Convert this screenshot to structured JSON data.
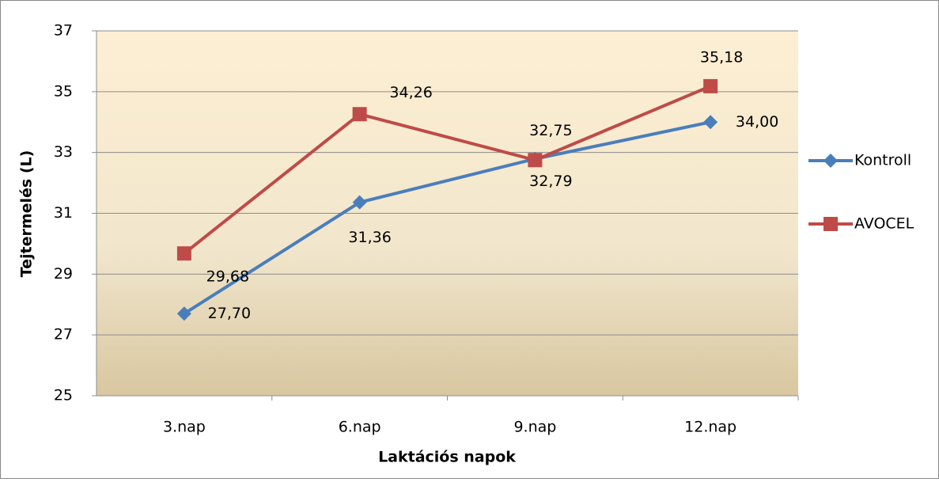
{
  "chart_data": {
    "type": "line",
    "categories": [
      "3.nap",
      "6.nap",
      "9.nap",
      "12.nap"
    ],
    "series": [
      {
        "name": "Kontroll",
        "color": "#4a7ebb",
        "marker": "diamond",
        "values": [
          27.7,
          31.36,
          32.79,
          34.0
        ],
        "value_labels": [
          "27,70",
          "31,36",
          "32,79",
          "34,00"
        ]
      },
      {
        "name": "AVOCEL",
        "color": "#be4b48",
        "marker": "square",
        "values": [
          29.68,
          34.26,
          32.75,
          35.18
        ],
        "value_labels": [
          "29,68",
          "34,26",
          "32,75",
          "35,18"
        ]
      }
    ],
    "ylabel": "Tejtermelés (L)",
    "xlabel": "Laktációs napok",
    "ylim": [
      25,
      37
    ],
    "yticks": [
      25,
      27,
      29,
      31,
      33,
      35,
      37
    ],
    "grid": true,
    "legend": "right"
  }
}
